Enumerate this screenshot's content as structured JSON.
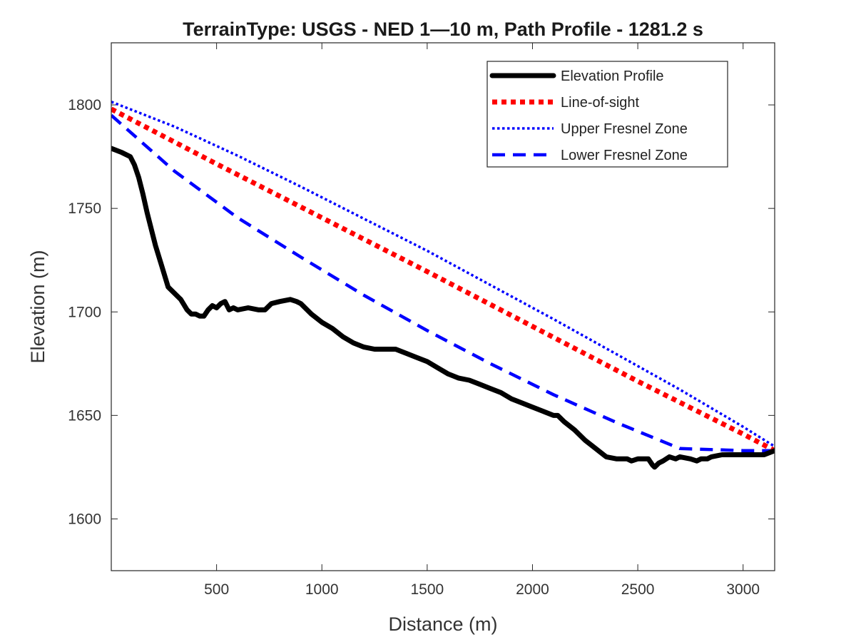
{
  "chart_data": {
    "type": "line",
    "title": "TerrainType: USGS - NED 1—10 m, Path Profile - 1281.2 s",
    "xlabel": "Distance (m)",
    "ylabel": "Elevation (m)",
    "xlim": [
      0,
      3150
    ],
    "ylim": [
      1575,
      1830
    ],
    "xticks": [
      500,
      1000,
      1500,
      2000,
      2500,
      3000
    ],
    "yticks": [
      1600,
      1650,
      1700,
      1750,
      1800
    ],
    "legend_position": "top-right",
    "series": [
      {
        "name": "Elevation Profile",
        "color": "#000000",
        "style": "solid",
        "x": [
          0,
          50,
          90,
          110,
          130,
          150,
          170,
          190,
          210,
          240,
          270,
          300,
          330,
          360,
          380,
          400,
          420,
          440,
          460,
          480,
          500,
          520,
          540,
          560,
          580,
          600,
          650,
          700,
          730,
          760,
          800,
          850,
          880,
          900,
          950,
          1000,
          1050,
          1100,
          1150,
          1200,
          1250,
          1300,
          1350,
          1400,
          1450,
          1500,
          1550,
          1600,
          1650,
          1700,
          1750,
          1800,
          1850,
          1900,
          1950,
          2000,
          2050,
          2100,
          2120,
          2150,
          2200,
          2250,
          2300,
          2350,
          2400,
          2450,
          2470,
          2500,
          2530,
          2550,
          2570,
          2580,
          2600,
          2620,
          2650,
          2680,
          2700,
          2750,
          2780,
          2800,
          2830,
          2850,
          2900,
          2950,
          3000,
          3050,
          3100,
          3150
        ],
        "y": [
          1779,
          1777,
          1775,
          1771,
          1765,
          1757,
          1748,
          1740,
          1732,
          1722,
          1712,
          1709,
          1706,
          1701,
          1699,
          1699,
          1698,
          1698,
          1701,
          1703,
          1702,
          1704,
          1705,
          1701,
          1702,
          1701,
          1702,
          1701,
          1701,
          1704,
          1705,
          1706,
          1705,
          1704,
          1699,
          1695,
          1692,
          1688,
          1685,
          1683,
          1682,
          1682,
          1682,
          1680,
          1678,
          1676,
          1673,
          1670,
          1668,
          1667,
          1665,
          1663,
          1661,
          1658,
          1656,
          1654,
          1652,
          1650,
          1650,
          1647,
          1643,
          1638,
          1634,
          1630,
          1629,
          1629,
          1628,
          1629,
          1629,
          1629,
          1626,
          1625,
          1627,
          1628,
          1630,
          1629,
          1630,
          1629,
          1628,
          1629,
          1629,
          1630,
          1631,
          1631,
          1631,
          1631,
          1631,
          1633
        ]
      },
      {
        "name": "Line-of-sight",
        "color": "#ff0000",
        "style": "dotted-thick",
        "x": [
          0,
          500,
          1000,
          1500,
          2000,
          2500,
          3000,
          3150
        ],
        "y": [
          1798,
          1771.5,
          1745.5,
          1719.5,
          1693,
          1666.5,
          1641,
          1633
        ]
      },
      {
        "name": "Upper Fresnel Zone",
        "color": "#0000ff",
        "style": "dotted",
        "x": [
          0,
          300,
          600,
          900,
          1200,
          1500,
          1800,
          2100,
          2400,
          2700,
          3000,
          3150
        ],
        "y": [
          1801.5,
          1789.5,
          1775.5,
          1760.5,
          1745,
          1729.5,
          1713,
          1696.5,
          1679.5,
          1662.5,
          1644.5,
          1635
        ]
      },
      {
        "name": "Lower Fresnel Zone",
        "color": "#0000ff",
        "style": "dashed",
        "x": [
          0,
          300,
          600,
          900,
          1200,
          1500,
          1800,
          2100,
          2400,
          2700,
          3000,
          3150
        ],
        "y": [
          1795,
          1768,
          1745.5,
          1726.5,
          1708,
          1691,
          1675,
          1660,
          1646.5,
          1634,
          1633,
          1633
        ]
      }
    ]
  }
}
